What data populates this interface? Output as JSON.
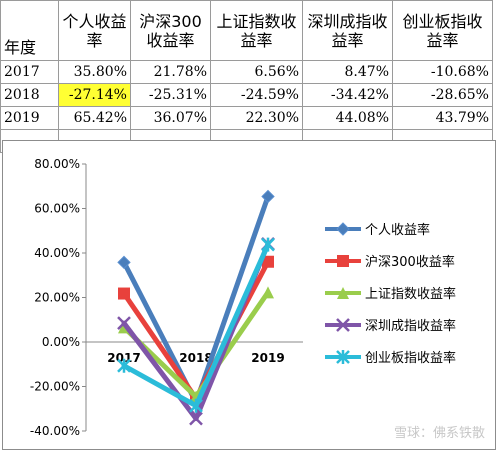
{
  "table": {
    "headers": [
      "年度",
      "个人收益率",
      "沪深300收益率",
      "上证指数收益率",
      "深圳成指收益率",
      "创业板指收益率"
    ],
    "rows": [
      [
        "2017",
        "35.80%",
        "21.78%",
        "6.56%",
        "8.47%",
        "-10.68%"
      ],
      [
        "2018",
        "-27.14%",
        "-25.31%",
        "-24.59%",
        "-34.42%",
        "-28.65%"
      ],
      [
        "2019",
        "65.42%",
        "36.07%",
        "22.30%",
        "44.08%",
        "43.79%"
      ]
    ]
  },
  "chart_data": {
    "type": "line",
    "x": [
      "2017",
      "2018",
      "2019"
    ],
    "ylim": [
      -40,
      80
    ],
    "yticks": [
      "80.00%",
      "60.00%",
      "40.00%",
      "20.00%",
      "0.00%",
      "-20.00%",
      "-40.00%"
    ],
    "grid": false,
    "legend": "right",
    "series": [
      {
        "name": "个人收益率",
        "values": [
          35.8,
          -27.14,
          65.42
        ],
        "color": "#4a7ebb",
        "marker": "diamond"
      },
      {
        "name": "沪深300收益率",
        "values": [
          21.78,
          -25.31,
          36.07
        ],
        "color": "#e8413c",
        "marker": "square"
      },
      {
        "name": "上证指数收益率",
        "values": [
          6.56,
          -24.59,
          22.3
        ],
        "color": "#9acd4c",
        "marker": "triangle"
      },
      {
        "name": "深圳成指收益率",
        "values": [
          8.47,
          -34.42,
          44.08
        ],
        "color": "#7f55a8",
        "marker": "x"
      },
      {
        "name": "创业板指收益率",
        "values": [
          -10.68,
          -28.65,
          43.79
        ],
        "color": "#2bbcd9",
        "marker": "star"
      }
    ]
  },
  "watermark": "雪球：佛系铁散"
}
